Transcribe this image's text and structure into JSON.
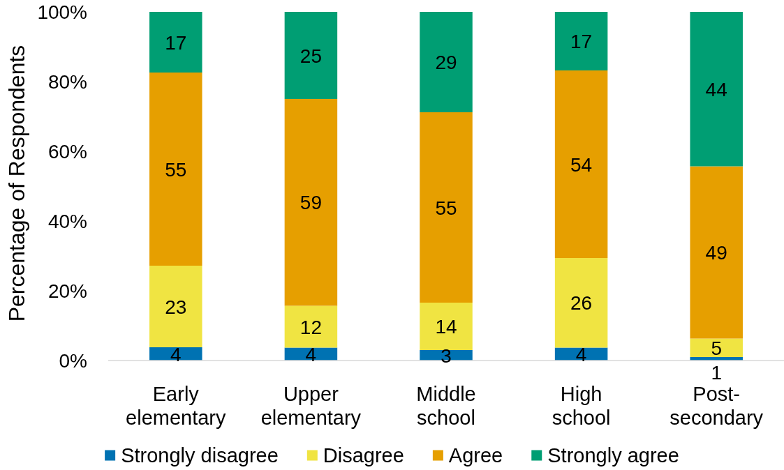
{
  "chart_data": {
    "type": "bar",
    "stacked": true,
    "ylabel": "Percentage of Respondents",
    "categories": [
      "Early elementary",
      "Upper elementary",
      "Middle school",
      "High school",
      "Post-secondary"
    ],
    "ylim": [
      0,
      100
    ],
    "yticks": [
      {
        "value": 0,
        "label": "0%"
      },
      {
        "value": 20,
        "label": "20%"
      },
      {
        "value": 40,
        "label": "40%"
      },
      {
        "value": 60,
        "label": "60%"
      },
      {
        "value": 80,
        "label": "80%"
      },
      {
        "value": 100,
        "label": "100%"
      }
    ],
    "legend": "bottom",
    "series": [
      {
        "name": "Strongly disagree",
        "color": "#0072b2",
        "values": [
          3.8,
          3.7,
          3.0,
          3.7,
          1.0
        ],
        "value_labels": [
          "4",
          "4",
          "3",
          "4",
          "1"
        ]
      },
      {
        "name": "Disagree",
        "color": "#f0e442",
        "values": [
          23.4,
          12.0,
          13.6,
          25.7,
          5.3
        ],
        "value_labels": [
          "23",
          "12",
          "14",
          "26",
          "5"
        ]
      },
      {
        "name": "Agree",
        "color": "#e69f00",
        "values": [
          55.4,
          59.3,
          54.6,
          53.8,
          49.4
        ],
        "value_labels": [
          "55",
          "59",
          "55",
          "54",
          "49"
        ]
      },
      {
        "name": "Strongly agree",
        "color": "#009e73",
        "values": [
          17.4,
          25.0,
          28.8,
          16.8,
          44.3
        ],
        "value_labels": [
          "17",
          "25",
          "29",
          "17",
          "44"
        ]
      }
    ]
  }
}
